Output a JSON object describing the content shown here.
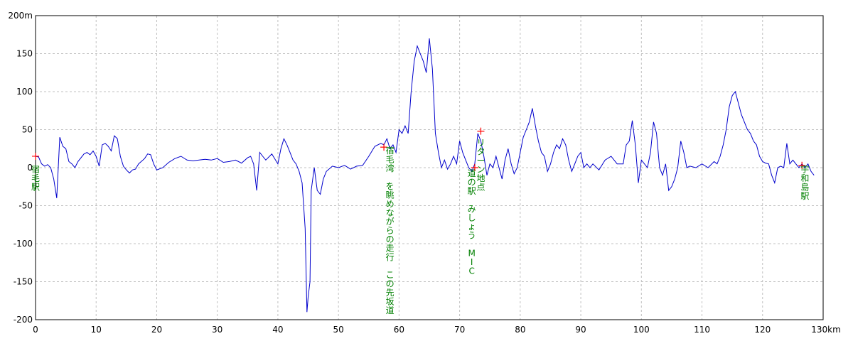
{
  "chart_data": {
    "type": "line",
    "title": "",
    "xlabel": "",
    "ylabel": "",
    "xlim": [
      0,
      130
    ],
    "ylim": [
      -200,
      200
    ],
    "x_ticks": [
      0,
      10,
      20,
      30,
      40,
      50,
      60,
      70,
      80,
      90,
      100,
      110,
      120,
      130
    ],
    "x_tick_labels": [
      "0",
      "10",
      "20",
      "30",
      "40",
      "50",
      "60",
      "70",
      "80",
      "90",
      "100",
      "110",
      "120",
      "130km"
    ],
    "y_ticks": [
      200,
      150,
      100,
      50,
      0,
      -50,
      -100,
      -150,
      -200
    ],
    "y_tick_labels": [
      "200m",
      "150",
      "100",
      "50",
      "0",
      "-50",
      "-100",
      "-150",
      "-200"
    ],
    "grid": true,
    "colors": {
      "line": "#0000cc",
      "marker": "#ff0000",
      "annotation": "#008000",
      "grid": "#c0c0c0"
    },
    "series": [
      {
        "values": [
          [
            0,
            15
          ],
          [
            0.5,
            14
          ],
          [
            1,
            5
          ],
          [
            1.5,
            2
          ],
          [
            2,
            4
          ],
          [
            2.5,
            0
          ],
          [
            3,
            -15
          ],
          [
            3.5,
            -40
          ],
          [
            4,
            40
          ],
          [
            4.5,
            28
          ],
          [
            5,
            25
          ],
          [
            5.5,
            8
          ],
          [
            6,
            5
          ],
          [
            6.5,
            0
          ],
          [
            7,
            8
          ],
          [
            8,
            18
          ],
          [
            8.5,
            20
          ],
          [
            9,
            17
          ],
          [
            9.5,
            22
          ],
          [
            10,
            15
          ],
          [
            10.5,
            2
          ],
          [
            11,
            30
          ],
          [
            11.5,
            32
          ],
          [
            12,
            28
          ],
          [
            12.5,
            22
          ],
          [
            13,
            42
          ],
          [
            13.5,
            38
          ],
          [
            14,
            15
          ],
          [
            14.5,
            2
          ],
          [
            15,
            -3
          ],
          [
            15.5,
            -7
          ],
          [
            16,
            -3
          ],
          [
            16.5,
            -2
          ],
          [
            17,
            5
          ],
          [
            18,
            12
          ],
          [
            18.5,
            18
          ],
          [
            19,
            17
          ],
          [
            19.5,
            5
          ],
          [
            20,
            -3
          ],
          [
            21,
            0
          ],
          [
            22,
            7
          ],
          [
            23,
            12
          ],
          [
            24,
            15
          ],
          [
            25,
            10
          ],
          [
            26,
            9
          ],
          [
            27,
            10
          ],
          [
            28,
            11
          ],
          [
            29,
            10
          ],
          [
            30,
            12
          ],
          [
            31,
            7
          ],
          [
            32,
            8
          ],
          [
            33,
            10
          ],
          [
            34,
            6
          ],
          [
            35,
            13
          ],
          [
            35.5,
            15
          ],
          [
            36,
            5
          ],
          [
            36.5,
            -30
          ],
          [
            37,
            20
          ],
          [
            37.5,
            15
          ],
          [
            38,
            10
          ],
          [
            39,
            18
          ],
          [
            40,
            5
          ],
          [
            40.5,
            25
          ],
          [
            41,
            38
          ],
          [
            41.5,
            30
          ],
          [
            42,
            20
          ],
          [
            42.5,
            10
          ],
          [
            43,
            5
          ],
          [
            43.5,
            -5
          ],
          [
            44,
            -20
          ],
          [
            44.5,
            -80
          ],
          [
            44.8,
            -190
          ],
          [
            45,
            -170
          ],
          [
            45.3,
            -150
          ],
          [
            45.5,
            -30
          ],
          [
            46,
            0
          ],
          [
            46.5,
            -30
          ],
          [
            47,
            -35
          ],
          [
            47.5,
            -15
          ],
          [
            48,
            -5
          ],
          [
            49,
            2
          ],
          [
            50,
            0
          ],
          [
            51,
            3
          ],
          [
            52,
            -2
          ],
          [
            53,
            2
          ],
          [
            54,
            3
          ],
          [
            55,
            15
          ],
          [
            56,
            28
          ],
          [
            57,
            32
          ],
          [
            57.5,
            30
          ],
          [
            58,
            38
          ],
          [
            58.5,
            25
          ],
          [
            59,
            30
          ],
          [
            59.5,
            20
          ],
          [
            60,
            50
          ],
          [
            60.5,
            45
          ],
          [
            61,
            55
          ],
          [
            61.5,
            45
          ],
          [
            62,
            100
          ],
          [
            62.5,
            140
          ],
          [
            63,
            160
          ],
          [
            63.5,
            150
          ],
          [
            64,
            140
          ],
          [
            64.5,
            125
          ],
          [
            65,
            170
          ],
          [
            65.5,
            130
          ],
          [
            66,
            45
          ],
          [
            66.5,
            20
          ],
          [
            67,
            0
          ],
          [
            67.5,
            10
          ],
          [
            68,
            -2
          ],
          [
            68.5,
            5
          ],
          [
            69,
            15
          ],
          [
            69.5,
            5
          ],
          [
            70,
            35
          ],
          [
            70.5,
            20
          ],
          [
            71,
            10
          ],
          [
            71.5,
            0
          ],
          [
            72,
            -5
          ],
          [
            72.5,
            5
          ],
          [
            73,
            45
          ],
          [
            73.5,
            35
          ],
          [
            74,
            15
          ],
          [
            74.5,
            -10
          ],
          [
            75,
            5
          ],
          [
            75.5,
            0
          ],
          [
            76,
            15
          ],
          [
            76.5,
            0
          ],
          [
            77,
            -15
          ],
          [
            77.5,
            10
          ],
          [
            78,
            25
          ],
          [
            78.5,
            5
          ],
          [
            79,
            -8
          ],
          [
            79.5,
            0
          ],
          [
            80,
            20
          ],
          [
            80.5,
            40
          ],
          [
            81,
            50
          ],
          [
            81.5,
            60
          ],
          [
            82,
            78
          ],
          [
            82.5,
            55
          ],
          [
            83,
            35
          ],
          [
            83.5,
            20
          ],
          [
            84,
            15
          ],
          [
            84.5,
            -5
          ],
          [
            85,
            5
          ],
          [
            85.5,
            20
          ],
          [
            86,
            30
          ],
          [
            86.5,
            25
          ],
          [
            87,
            38
          ],
          [
            87.5,
            30
          ],
          [
            88,
            10
          ],
          [
            88.5,
            -5
          ],
          [
            89,
            5
          ],
          [
            89.5,
            15
          ],
          [
            90,
            20
          ],
          [
            90.5,
            0
          ],
          [
            91,
            5
          ],
          [
            91.5,
            0
          ],
          [
            92,
            5
          ],
          [
            93,
            -3
          ],
          [
            94,
            10
          ],
          [
            95,
            15
          ],
          [
            96,
            5
          ],
          [
            97,
            5
          ],
          [
            97.5,
            30
          ],
          [
            98,
            35
          ],
          [
            98.5,
            62
          ],
          [
            99,
            30
          ],
          [
            99.5,
            -20
          ],
          [
            100,
            10
          ],
          [
            100.5,
            5
          ],
          [
            101,
            0
          ],
          [
            101.5,
            20
          ],
          [
            102,
            60
          ],
          [
            102.5,
            45
          ],
          [
            103,
            0
          ],
          [
            103.5,
            -10
          ],
          [
            104,
            5
          ],
          [
            104.5,
            -30
          ],
          [
            105,
            -25
          ],
          [
            105.5,
            -15
          ],
          [
            106,
            0
          ],
          [
            106.5,
            35
          ],
          [
            107,
            20
          ],
          [
            107.5,
            0
          ],
          [
            108,
            2
          ],
          [
            109,
            0
          ],
          [
            110,
            5
          ],
          [
            111,
            0
          ],
          [
            112,
            8
          ],
          [
            112.5,
            5
          ],
          [
            113,
            15
          ],
          [
            113.5,
            30
          ],
          [
            114,
            50
          ],
          [
            114.5,
            80
          ],
          [
            115,
            95
          ],
          [
            115.5,
            100
          ],
          [
            116,
            85
          ],
          [
            116.5,
            70
          ],
          [
            117,
            60
          ],
          [
            117.5,
            50
          ],
          [
            118,
            45
          ],
          [
            118.5,
            35
          ],
          [
            119,
            30
          ],
          [
            119.5,
            15
          ],
          [
            120,
            8
          ],
          [
            120.5,
            6
          ],
          [
            121,
            5
          ],
          [
            121.5,
            -10
          ],
          [
            122,
            -20
          ],
          [
            122.5,
            0
          ],
          [
            123,
            2
          ],
          [
            123.5,
            0
          ],
          [
            124,
            32
          ],
          [
            124.5,
            5
          ],
          [
            125,
            10
          ],
          [
            125.5,
            5
          ],
          [
            126,
            0
          ],
          [
            126.5,
            5
          ],
          [
            127,
            0
          ],
          [
            127.5,
            5
          ],
          [
            128,
            -5
          ],
          [
            128.5,
            -10
          ]
        ]
      }
    ],
    "markers": [
      {
        "x": 0,
        "y": 15
      },
      {
        "x": 57.5,
        "y": 27
      },
      {
        "x": 72.5,
        "y": 0
      },
      {
        "x": 73.5,
        "y": 48
      },
      {
        "x": 126.5,
        "y": 3
      }
    ],
    "annotations": [
      {
        "x": 0,
        "y": 0,
        "text": "宿毛駅"
      },
      {
        "x": 58.5,
        "y": 25,
        "text": "宿毛湾　を眺めながらの走行　この先坂道"
      },
      {
        "x": 73.5,
        "y": 35,
        "text": "リターン地点"
      },
      {
        "x": 72,
        "y": -5,
        "text": "道の駅　みしょう MIC"
      },
      {
        "x": 127,
        "y": 0,
        "text": "宇和島駅"
      }
    ]
  }
}
